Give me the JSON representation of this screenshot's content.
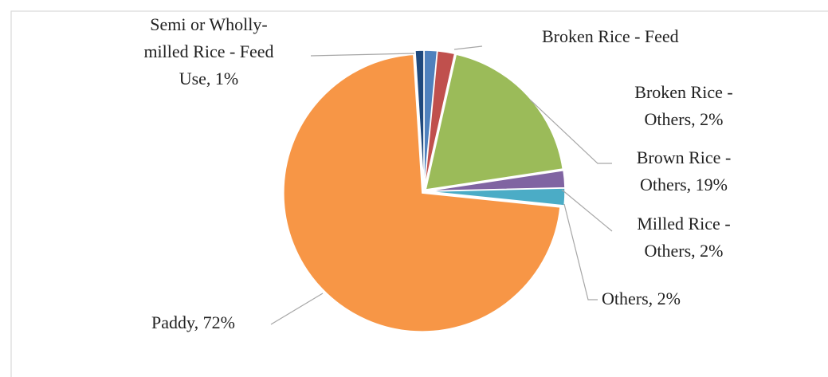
{
  "chart_data": {
    "type": "pie",
    "labels": [
      [
        "Broken Rice - Feed"
      ],
      [
        "Broken Rice -",
        "Others, 2%"
      ],
      [
        "Brown Rice -",
        "Others, 19%"
      ],
      [
        "Milled Rice -",
        "Others, 2%"
      ],
      [
        "Others, 2%"
      ],
      [
        "Paddy, 72%"
      ],
      [
        "Semi or Wholly-",
        "milled Rice - Feed",
        "Use, 1%"
      ]
    ],
    "values": [
      1.5,
      2,
      19,
      2,
      2,
      72,
      1
    ],
    "colors": [
      "#4f81bd",
      "#c0504d",
      "#9bbb59",
      "#8064a2",
      "#4bacc6",
      "#f79646",
      "#1f497d"
    ]
  }
}
